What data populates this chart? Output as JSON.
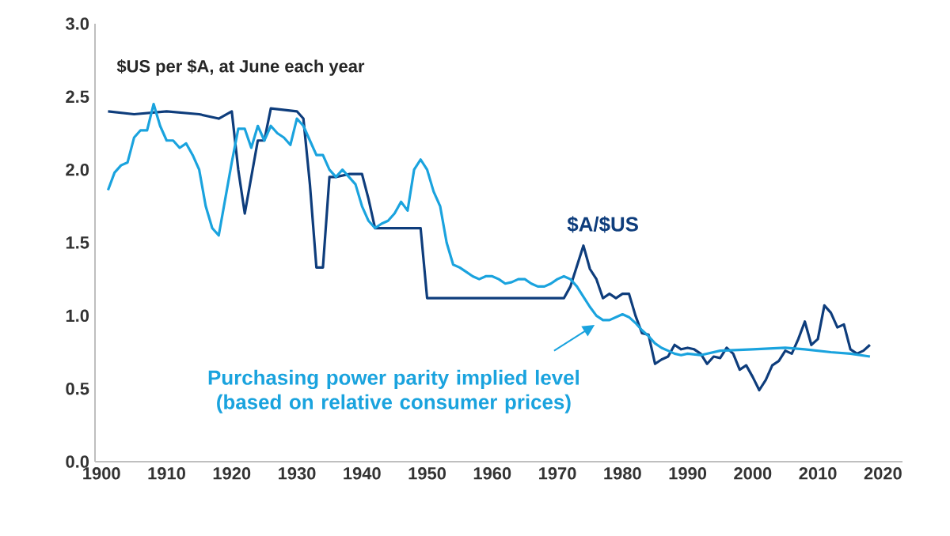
{
  "chart_data": {
    "type": "line",
    "legend": "bottom",
    "grid": false,
    "marker": "none",
    "line_style": "solid",
    "xlim": [
      1899,
      2023
    ],
    "ylim": [
      0,
      3
    ],
    "xticks": [
      1900,
      1910,
      1920,
      1930,
      1940,
      1950,
      1960,
      1970,
      1980,
      1990,
      2000,
      2010,
      2020
    ],
    "yticks": [
      {
        "value": 0,
        "label": "0.0"
      },
      {
        "value": 0.5,
        "label": "0.5"
      },
      {
        "value": 1,
        "label": "1.0"
      },
      {
        "value": 1.5,
        "label": "1.5"
      },
      {
        "value": 2,
        "label": "2.0"
      },
      {
        "value": 2.5,
        "label": "2.5"
      },
      {
        "value": 3,
        "label": "3.0"
      }
    ],
    "annotations": [
      {
        "text": "$US per $A, at June each year"
      }
    ],
    "series": [
      {
        "name": "$A/$US",
        "color": "#0e3d7c",
        "x": [
          1901,
          1905,
          1910,
          1915,
          1918,
          1920,
          1921,
          1922,
          1924,
          1925,
          1926,
          1930,
          1931,
          1932,
          1933,
          1934,
          1935,
          1936,
          1938,
          1940,
          1941,
          1942,
          1949,
          1950,
          1955,
          1960,
          1965,
          1971,
          1972,
          1974,
          1975,
          1976,
          1977,
          1978,
          1979,
          1980,
          1981,
          1982,
          1983,
          1984,
          1985,
          1986,
          1987,
          1988,
          1989,
          1990,
          1991,
          1992,
          1993,
          1994,
          1995,
          1996,
          1997,
          1998,
          1999,
          2000,
          2001,
          2002,
          2003,
          2004,
          2005,
          2006,
          2007,
          2008,
          2009,
          2010,
          2011,
          2012,
          2013,
          2014,
          2015,
          2016,
          2017,
          2018
        ],
        "values": [
          2.4,
          2.38,
          2.4,
          2.38,
          2.35,
          2.4,
          2.0,
          1.7,
          2.2,
          2.2,
          2.42,
          2.4,
          2.35,
          1.9,
          1.33,
          1.33,
          1.95,
          1.95,
          1.97,
          1.97,
          1.8,
          1.6,
          1.6,
          1.12,
          1.12,
          1.12,
          1.12,
          1.12,
          1.2,
          1.48,
          1.32,
          1.25,
          1.12,
          1.15,
          1.12,
          1.15,
          1.15,
          1.0,
          0.88,
          0.87,
          0.67,
          0.7,
          0.72,
          0.8,
          0.77,
          0.78,
          0.77,
          0.74,
          0.67,
          0.72,
          0.71,
          0.78,
          0.74,
          0.63,
          0.66,
          0.58,
          0.49,
          0.56,
          0.66,
          0.69,
          0.76,
          0.74,
          0.84,
          0.96,
          0.8,
          0.84,
          1.07,
          1.02,
          0.92,
          0.94,
          0.77,
          0.74,
          0.76,
          0.8
        ]
      },
      {
        "name": "Purchasing power parity implied level (based on relative consumer prices)",
        "color": "#1aa3de",
        "x": [
          1901,
          1902,
          1903,
          1904,
          1905,
          1906,
          1907,
          1908,
          1909,
          1910,
          1911,
          1912,
          1913,
          1914,
          1915,
          1916,
          1917,
          1918,
          1919,
          1920,
          1921,
          1922,
          1923,
          1924,
          1925,
          1926,
          1927,
          1928,
          1929,
          1930,
          1931,
          1932,
          1933,
          1934,
          1935,
          1936,
          1937,
          1938,
          1939,
          1940,
          1941,
          1942,
          1943,
          1944,
          1945,
          1946,
          1947,
          1948,
          1949,
          1950,
          1951,
          1952,
          1953,
          1954,
          1955,
          1956,
          1957,
          1958,
          1959,
          1960,
          1961,
          1962,
          1963,
          1964,
          1965,
          1966,
          1967,
          1968,
          1969,
          1970,
          1971,
          1972,
          1973,
          1974,
          1975,
          1976,
          1977,
          1978,
          1979,
          1980,
          1981,
          1982,
          1983,
          1984,
          1985,
          1986,
          1987,
          1988,
          1989,
          1990,
          1992,
          1995,
          2000,
          2005,
          2008,
          2012,
          2015,
          2018
        ],
        "values": [
          1.86,
          1.98,
          2.03,
          2.05,
          2.22,
          2.27,
          2.27,
          2.45,
          2.3,
          2.2,
          2.2,
          2.15,
          2.18,
          2.1,
          2.0,
          1.75,
          1.6,
          1.55,
          1.8,
          2.05,
          2.28,
          2.28,
          2.15,
          2.3,
          2.2,
          2.3,
          2.25,
          2.22,
          2.17,
          2.35,
          2.3,
          2.2,
          2.1,
          2.1,
          2.0,
          1.95,
          2.0,
          1.95,
          1.9,
          1.75,
          1.65,
          1.6,
          1.63,
          1.65,
          1.7,
          1.78,
          1.72,
          2.0,
          2.07,
          2.0,
          1.85,
          1.75,
          1.5,
          1.35,
          1.33,
          1.3,
          1.27,
          1.25,
          1.27,
          1.27,
          1.25,
          1.22,
          1.23,
          1.25,
          1.25,
          1.22,
          1.2,
          1.2,
          1.22,
          1.25,
          1.27,
          1.25,
          1.2,
          1.13,
          1.06,
          1.0,
          0.97,
          0.97,
          0.99,
          1.01,
          0.99,
          0.95,
          0.9,
          0.86,
          0.81,
          0.78,
          0.76,
          0.74,
          0.73,
          0.74,
          0.73,
          0.76,
          0.77,
          0.78,
          0.77,
          0.75,
          0.74,
          0.72
        ]
      }
    ]
  }
}
